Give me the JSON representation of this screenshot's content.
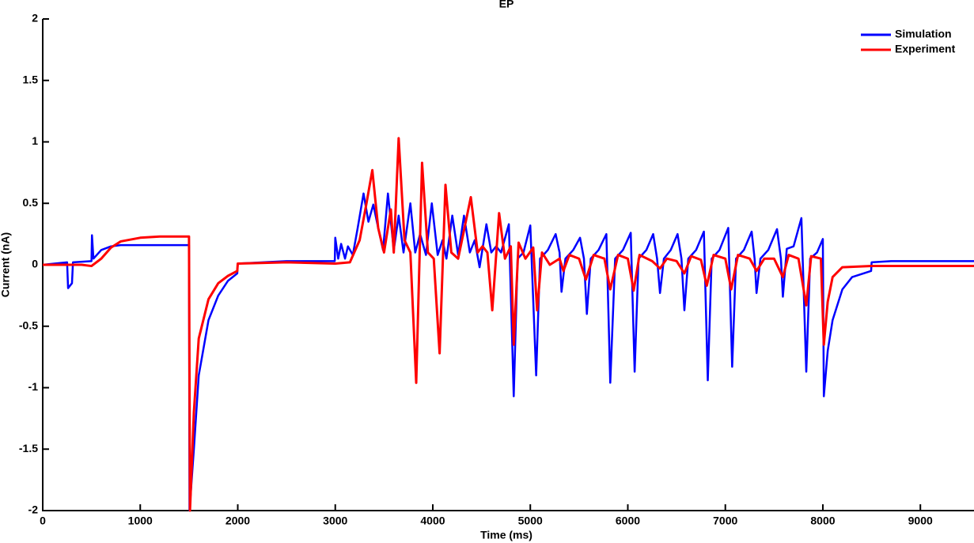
{
  "chart_data": {
    "type": "line",
    "title": "EP",
    "xlabel": "Time (ms)",
    "ylabel": "Current (nA)",
    "xlim": [
      0,
      9550
    ],
    "ylim": [
      -2,
      2
    ],
    "xticks": [
      0,
      1000,
      2000,
      3000,
      4000,
      5000,
      6000,
      7000,
      8000,
      9000
    ],
    "yticks": [
      -2,
      -1.5,
      -1,
      -0.5,
      0,
      0.5,
      1,
      1.5,
      2
    ],
    "legend": "upper right",
    "series": [
      {
        "name": "Simulation",
        "color": "#0000ff",
        "x": [
          0,
          250,
          260,
          300,
          310,
          500,
          505,
          520,
          600,
          700,
          800,
          1500,
          1505,
          1550,
          1600,
          1700,
          1800,
          1900,
          1995,
          2000,
          2500,
          2995,
          3000,
          3030,
          3060,
          3100,
          3130,
          3180,
          3230,
          3290,
          3340,
          3390,
          3440,
          3490,
          3540,
          3600,
          3650,
          3700,
          3770,
          3820,
          3870,
          3930,
          3990,
          4050,
          4100,
          4140,
          4200,
          4260,
          4320,
          4380,
          4430,
          4480,
          4550,
          4600,
          4650,
          4700,
          4780,
          4830,
          4870,
          4930,
          5000,
          5060,
          5100,
          5180,
          5260,
          5300,
          5320,
          5360,
          5440,
          5510,
          5550,
          5580,
          5620,
          5700,
          5780,
          5820,
          5870,
          5950,
          6030,
          6070,
          6110,
          6190,
          6260,
          6300,
          6330,
          6370,
          6440,
          6510,
          6550,
          6580,
          6620,
          6700,
          6780,
          6820,
          6860,
          6940,
          7030,
          7070,
          7110,
          7190,
          7270,
          7300,
          7320,
          7360,
          7440,
          7530,
          7570,
          7590,
          7630,
          7700,
          7780,
          7830,
          7870,
          7940,
          8000,
          8010,
          8050,
          8100,
          8200,
          8300,
          8495,
          8500,
          8700,
          9550
        ],
        "values": [
          0,
          0.02,
          -0.19,
          -0.15,
          0.02,
          0.03,
          0.24,
          0.05,
          0.12,
          0.15,
          0.16,
          0.16,
          -2,
          -1.5,
          -0.9,
          -0.45,
          -0.25,
          -0.13,
          -0.07,
          0.01,
          0.03,
          0.03,
          0.22,
          0.05,
          0.17,
          0.05,
          0.15,
          0.08,
          0.3,
          0.58,
          0.35,
          0.49,
          0.3,
          0.12,
          0.58,
          0.12,
          0.4,
          0.1,
          0.5,
          0.1,
          0.25,
          0.08,
          0.5,
          0.08,
          0.2,
          0.05,
          0.4,
          0.08,
          0.4,
          0.1,
          0.2,
          -0.02,
          0.33,
          0.1,
          0.15,
          0.1,
          0.33,
          -1.07,
          0.05,
          0.1,
          0.32,
          -0.9,
          0.05,
          0.12,
          0.25,
          0.1,
          -0.22,
          0.05,
          0.12,
          0.22,
          0.05,
          -0.4,
          0.05,
          0.12,
          0.25,
          -0.96,
          0.05,
          0.12,
          0.26,
          -0.87,
          0.05,
          0.12,
          0.25,
          0.05,
          -0.23,
          0.05,
          0.12,
          0.25,
          0.05,
          -0.37,
          0.05,
          0.12,
          0.27,
          -0.94,
          0.05,
          0.12,
          0.3,
          -0.83,
          0.05,
          0.12,
          0.27,
          0.05,
          -0.23,
          0.05,
          0.12,
          0.29,
          0.05,
          -0.26,
          0.13,
          0.15,
          0.38,
          -0.87,
          0.05,
          0.1,
          0.21,
          -1.07,
          -0.7,
          -0.45,
          -0.2,
          -0.1,
          -0.05,
          0.02,
          0.03,
          0.03
        ]
      },
      {
        "name": "Experiment",
        "color": "#ff0000",
        "x": [
          0,
          300,
          400,
          500,
          600,
          700,
          800,
          1000,
          1200,
          1500,
          1510,
          1550,
          1600,
          1700,
          1800,
          1900,
          1995,
          2000,
          2500,
          3000,
          3150,
          3250,
          3320,
          3380,
          3440,
          3500,
          3570,
          3600,
          3650,
          3710,
          3770,
          3830,
          3890,
          3950,
          4010,
          4070,
          4130,
          4190,
          4260,
          4320,
          4390,
          4460,
          4510,
          4560,
          4610,
          4680,
          4740,
          4800,
          4830,
          4880,
          4950,
          5030,
          5070,
          5120,
          5200,
          5300,
          5340,
          5400,
          5500,
          5570,
          5650,
          5760,
          5820,
          5900,
          6000,
          6060,
          6120,
          6250,
          6330,
          6400,
          6500,
          6580,
          6650,
          6750,
          6810,
          6880,
          7000,
          7060,
          7130,
          7250,
          7320,
          7400,
          7500,
          7590,
          7650,
          7750,
          7830,
          7880,
          7980,
          8010,
          8050,
          8100,
          8200,
          8500,
          9550
        ],
        "values": [
          0,
          0,
          0,
          -0.01,
          0.05,
          0.14,
          0.19,
          0.22,
          0.23,
          0.23,
          -2,
          -1.2,
          -0.6,
          -0.28,
          -0.15,
          -0.09,
          -0.05,
          0.01,
          0.02,
          0.01,
          0.02,
          0.2,
          0.5,
          0.77,
          0.3,
          0.1,
          0.45,
          0.1,
          1.03,
          0.2,
          0.1,
          -0.96,
          0.83,
          0.1,
          0.05,
          -0.72,
          0.65,
          0.1,
          0.05,
          0.28,
          0.55,
          0.1,
          0.15,
          0.1,
          -0.37,
          0.42,
          0.05,
          0.15,
          -0.65,
          0.18,
          0.05,
          0.14,
          -0.37,
          0.1,
          0,
          0.05,
          -0.05,
          0.08,
          0.05,
          -0.12,
          0.08,
          0.05,
          -0.2,
          0.08,
          0.05,
          -0.21,
          0.08,
          0.03,
          -0.03,
          0.05,
          0.03,
          -0.07,
          0.07,
          0.04,
          -0.17,
          0.08,
          0.05,
          -0.2,
          0.08,
          0.05,
          -0.05,
          0.05,
          0.05,
          -0.1,
          0.08,
          0.05,
          -0.33,
          0.07,
          0.05,
          -0.65,
          -0.3,
          -0.1,
          -0.02,
          -0.01,
          -0.01
        ]
      }
    ]
  }
}
